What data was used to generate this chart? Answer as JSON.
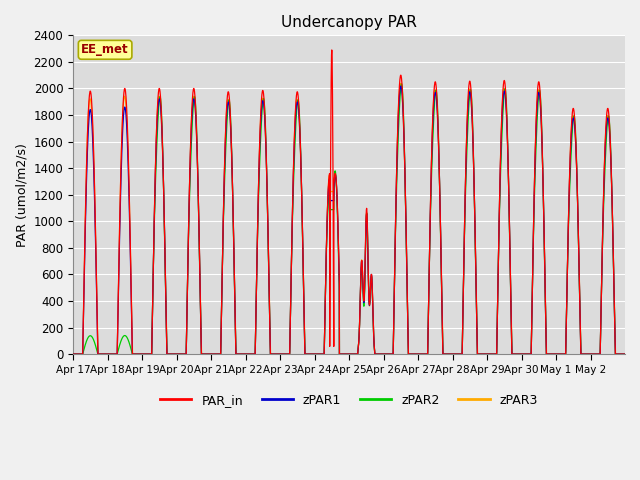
{
  "title": "Undercanopy PAR",
  "ylabel": "PAR (umol/m2/s)",
  "annotation": "EE_met",
  "ylim": [
    0,
    2400
  ],
  "yticks": [
    0,
    200,
    400,
    600,
    800,
    1000,
    1200,
    1400,
    1600,
    1800,
    2000,
    2200,
    2400
  ],
  "x_labels": [
    "Apr 17",
    "Apr 18",
    "Apr 19",
    "Apr 20",
    "Apr 21",
    "Apr 22",
    "Apr 23",
    "Apr 24",
    "Apr 25",
    "Apr 26",
    "Apr 27",
    "Apr 28",
    "Apr 29",
    "Apr 30",
    "May 1",
    "May 2"
  ],
  "colors": {
    "PAR_in": "#ff0000",
    "zPAR1": "#0000cc",
    "zPAR2": "#00cc00",
    "zPAR3": "#ffaa00"
  },
  "plot_bg": "#dcdcdc",
  "fig_bg": "#f0f0f0",
  "grid_color": "#ffffff",
  "annotation_bg": "#ffff99",
  "annotation_border": "#aaaa00",
  "annotation_text_color": "#990000",
  "num_days": 16,
  "ppd": 288,
  "par_in_peaks": [
    1980,
    2000,
    2000,
    2000,
    1975,
    1985,
    1975,
    2290,
    1100,
    2100,
    2050,
    2055,
    2060,
    2050,
    1850,
    1850
  ],
  "cloudy_day": 8,
  "spike_day": 7,
  "spike_peak": 2290,
  "pre_spike_peak": 1360,
  "zpar_day_configs": {
    "low_canopy_days": [
      0,
      1
    ],
    "zpar1_scale": 0.98,
    "zpar2_low_scale": 0.07,
    "zpar3_scale": 0.985
  }
}
